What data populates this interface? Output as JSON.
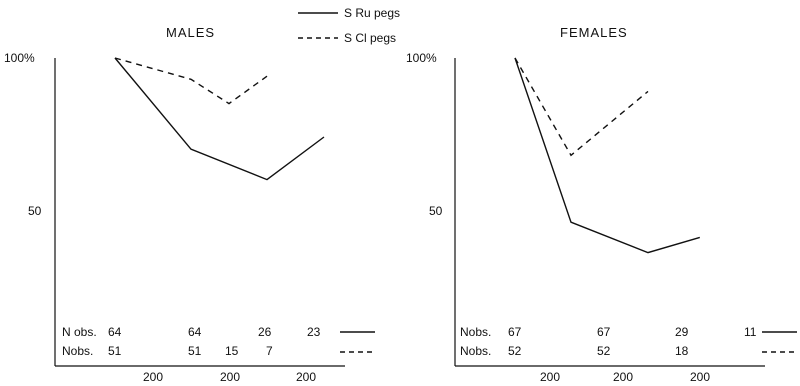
{
  "legend": {
    "items": [
      {
        "label": "S Ru pegs",
        "style": "solid"
      },
      {
        "label": "S Cl  pegs",
        "style": "dashed"
      }
    ]
  },
  "chart_data": [
    {
      "type": "line",
      "title": "MALES",
      "y_ticks": [
        {
          "value": 100,
          "label": "100%"
        },
        {
          "value": 50,
          "label": "50"
        }
      ],
      "x_interval_labels": [
        "200",
        "200",
        "200"
      ],
      "legend_position": "top-center",
      "grid": false,
      "series": [
        {
          "name": "S Ru pegs",
          "style": "solid",
          "x": [
            0,
            200,
            400,
            550
          ],
          "y": [
            100,
            70,
            60,
            74
          ]
        },
        {
          "name": "S Cl  pegs",
          "style": "dashed",
          "x": [
            0,
            200,
            300,
            400
          ],
          "y": [
            100,
            93,
            85,
            94
          ]
        }
      ],
      "nobs_rows": [
        {
          "label": "N obs.",
          "values": [
            "64",
            "64",
            "26",
            "23"
          ],
          "style": "solid"
        },
        {
          "label": "Nobs.",
          "values": [
            "51",
            "51",
            "15",
            "7"
          ],
          "style": "dashed"
        }
      ]
    },
    {
      "type": "line",
      "title": "FEMALES",
      "y_ticks": [
        {
          "value": 100,
          "label": "100%"
        },
        {
          "value": 50,
          "label": "50"
        }
      ],
      "x_interval_labels": [
        "200",
        "200",
        "200"
      ],
      "legend_position": "top-center",
      "grid": false,
      "series": [
        {
          "name": "S Ru pegs",
          "style": "solid",
          "x": [
            0,
            200,
            475,
            660
          ],
          "y": [
            100,
            46,
            36,
            41
          ]
        },
        {
          "name": "S Cl  pegs",
          "style": "dashed",
          "x": [
            0,
            200,
            475
          ],
          "y": [
            100,
            68,
            89
          ]
        }
      ],
      "nobs_rows": [
        {
          "label": "Nobs.",
          "values": [
            "67",
            "67",
            "29",
            "11"
          ],
          "style": "solid"
        },
        {
          "label": "Nobs.",
          "values": [
            "52",
            "52",
            "18"
          ],
          "style": "dashed"
        }
      ]
    }
  ]
}
